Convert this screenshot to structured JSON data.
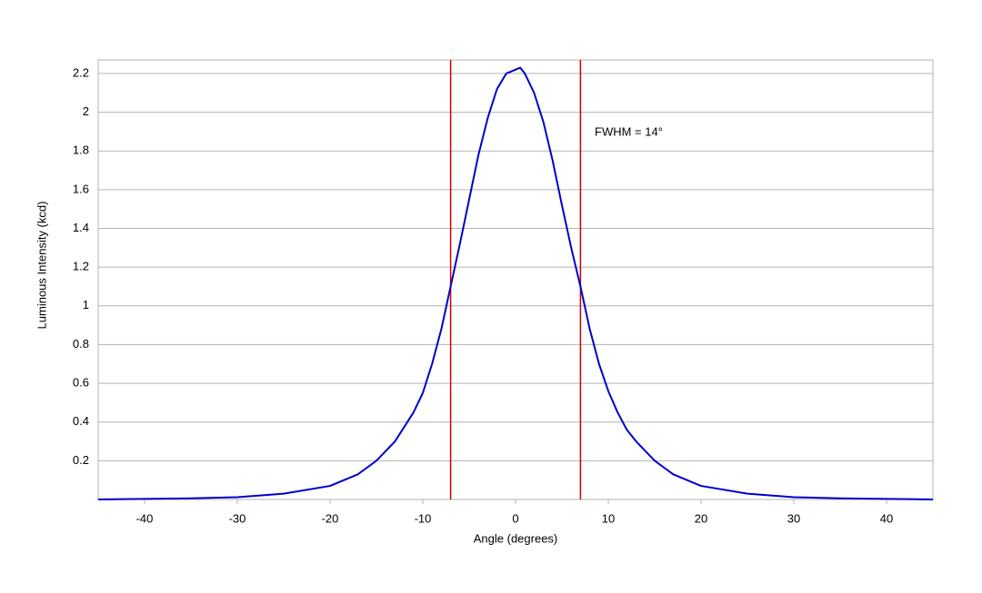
{
  "chart_data": {
    "type": "line",
    "x_label": "Angle (degrees)",
    "y_label": "Luminous Intensity (kcd)",
    "annotation": "FWHM = 14°",
    "x": [
      -45,
      -40,
      -35,
      -30,
      -25,
      -20,
      -17,
      -15,
      -13,
      -11,
      -10,
      -9,
      -8,
      -7,
      -6,
      -5,
      -4,
      -3,
      -2,
      -1,
      0,
      0.5,
      1,
      2,
      3,
      4,
      5,
      6,
      7,
      8,
      9,
      10,
      11,
      12,
      13,
      15,
      17,
      20,
      25,
      30,
      35,
      40,
      45
    ],
    "series": [
      {
        "color": "#0000cc",
        "values": [
          0.0,
          0.003,
          0.006,
          0.012,
          0.03,
          0.07,
          0.13,
          0.2,
          0.3,
          0.45,
          0.55,
          0.7,
          0.88,
          1.1,
          1.32,
          1.55,
          1.78,
          1.97,
          2.12,
          2.2,
          2.22,
          2.23,
          2.2,
          2.1,
          1.95,
          1.75,
          1.52,
          1.3,
          1.1,
          0.88,
          0.7,
          0.56,
          0.45,
          0.36,
          0.3,
          0.2,
          0.13,
          0.07,
          0.03,
          0.012,
          0.006,
          0.003,
          0.0
        ]
      }
    ],
    "vlines": [
      -7,
      7
    ],
    "vline_color": "#cc0000",
    "xlim": [
      -45,
      45
    ],
    "xticks": [
      -40,
      -30,
      -20,
      -10,
      0,
      10,
      20,
      30,
      40
    ],
    "ylim": [
      0,
      2.27
    ],
    "yticks": [
      0.2,
      0.4,
      0.6,
      0.8,
      1.0,
      1.2,
      1.4,
      1.6,
      1.8,
      2.0,
      2.2
    ],
    "grid": true
  }
}
